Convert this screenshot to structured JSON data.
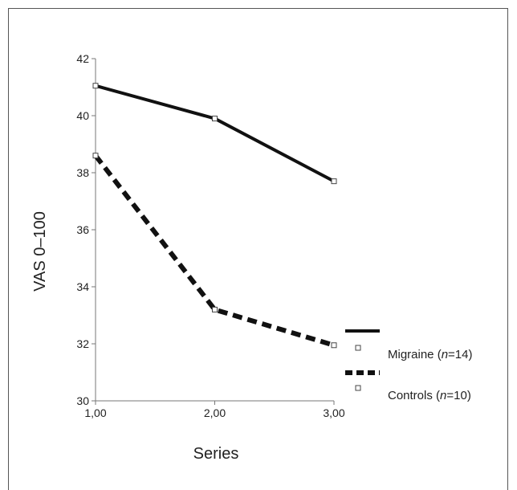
{
  "chart_data": {
    "type": "line",
    "title": "",
    "xlabel": "Series",
    "ylabel": "VAS 0–100",
    "x": [
      1,
      2,
      3
    ],
    "x_tick_labels": [
      "1,00",
      "2,00",
      "3,00"
    ],
    "xlim": [
      1,
      3
    ],
    "ylim": [
      30,
      42
    ],
    "y_ticks": [
      30,
      32,
      34,
      36,
      38,
      40,
      42
    ],
    "grid": false,
    "legend_position": "bottom-right",
    "series": [
      {
        "name": "Migraine (n=14)",
        "legend_prefix": "Migraine (",
        "legend_italic": "n",
        "legend_suffix": "=14)",
        "line_style": "solid",
        "color": "#111111",
        "values": [
          41.05,
          39.9,
          37.7
        ]
      },
      {
        "name": "Controls (n=10)",
        "legend_prefix": "Controls (",
        "legend_italic": "n",
        "legend_suffix": "=10)",
        "line_style": "dashed",
        "color": "#111111",
        "values": [
          38.6,
          33.2,
          31.95
        ]
      }
    ]
  }
}
